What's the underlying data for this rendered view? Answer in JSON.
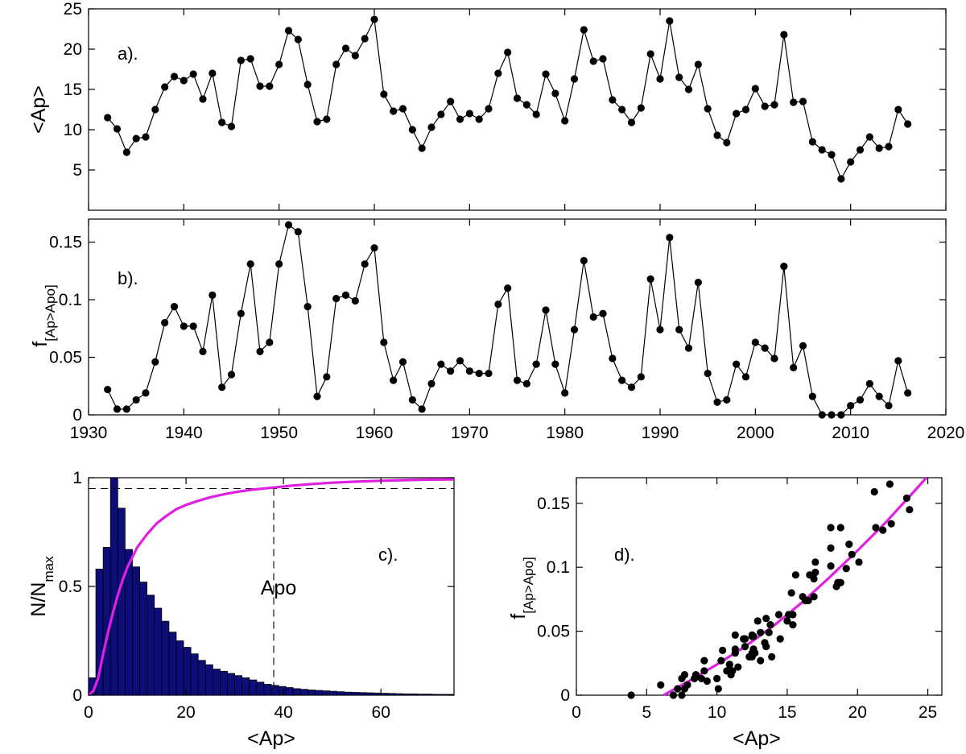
{
  "chart_data": [
    {
      "id": "a",
      "type": "line",
      "annotation": "a).",
      "ylabel": "<Ap>",
      "xlabel": "",
      "xlim": [
        1930,
        2020
      ],
      "ylim": [
        0,
        25
      ],
      "xticks": [
        "1930",
        "1940",
        "1950",
        "1960",
        "1970",
        "1980",
        "1990",
        "2000",
        "2010",
        "2020"
      ],
      "yticks": [
        "5",
        "10",
        "15",
        "20",
        "25"
      ],
      "marker": "filled-circle",
      "color": "#000000",
      "x": [
        1932,
        1933,
        1934,
        1935,
        1936,
        1937,
        1938,
        1939,
        1940,
        1941,
        1942,
        1943,
        1944,
        1945,
        1946,
        1947,
        1948,
        1949,
        1950,
        1951,
        1952,
        1953,
        1954,
        1955,
        1956,
        1957,
        1958,
        1959,
        1960,
        1961,
        1962,
        1963,
        1964,
        1965,
        1966,
        1967,
        1968,
        1969,
        1970,
        1971,
        1972,
        1973,
        1974,
        1975,
        1976,
        1977,
        1978,
        1979,
        1980,
        1981,
        1982,
        1983,
        1984,
        1985,
        1986,
        1987,
        1988,
        1989,
        1990,
        1991,
        1992,
        1993,
        1994,
        1995,
        1996,
        1997,
        1998,
        1999,
        2000,
        2001,
        2002,
        2003,
        2004,
        2005,
        2006,
        2007,
        2008,
        2009,
        2010,
        2011,
        2012,
        2013,
        2014,
        2015,
        2016
      ],
      "y": [
        11.5,
        10.1,
        7.2,
        8.9,
        9.1,
        12.5,
        15.3,
        16.6,
        16.1,
        16.9,
        13.8,
        17.0,
        10.9,
        10.4,
        18.6,
        18.8,
        15.4,
        15.4,
        18.1,
        22.3,
        21.2,
        15.6,
        11.0,
        11.3,
        18.1,
        20.1,
        19.2,
        21.3,
        23.7,
        14.4,
        12.3,
        12.6,
        10.0,
        7.7,
        10.3,
        11.9,
        13.5,
        11.3,
        12.0,
        11.3,
        12.6,
        17.0,
        19.6,
        13.9,
        13.1,
        11.9,
        16.9,
        14.5,
        11.1,
        16.3,
        22.4,
        18.5,
        18.8,
        13.7,
        12.5,
        10.9,
        12.7,
        19.4,
        16.3,
        23.5,
        16.5,
        15.0,
        18.1,
        12.6,
        9.3,
        8.4,
        12.0,
        12.5,
        15.1,
        12.9,
        13.1,
        21.8,
        13.4,
        13.5,
        8.5,
        7.5,
        6.9,
        3.9,
        6.0,
        7.5,
        9.1,
        7.7,
        7.9,
        12.5,
        10.7
      ]
    },
    {
      "id": "b",
      "type": "line",
      "annotation": "b).",
      "ylabel": "f",
      "ylabel_subscript": "[Ap>Apo]",
      "xlabel": "",
      "xlim": [
        1930,
        2020
      ],
      "ylim": [
        0,
        0.17
      ],
      "xticks": [
        "1930",
        "1940",
        "1950",
        "1960",
        "1970",
        "1980",
        "1990",
        "2000",
        "2010",
        "2020"
      ],
      "yticks": [
        "0",
        "0.05",
        "0.1",
        "0.15"
      ],
      "marker": "filled-circle",
      "color": "#000000",
      "x": [
        1932,
        1933,
        1934,
        1935,
        1936,
        1937,
        1938,
        1939,
        1940,
        1941,
        1942,
        1943,
        1944,
        1945,
        1946,
        1947,
        1948,
        1949,
        1950,
        1951,
        1952,
        1953,
        1954,
        1955,
        1956,
        1957,
        1958,
        1959,
        1960,
        1961,
        1962,
        1963,
        1964,
        1965,
        1966,
        1967,
        1968,
        1969,
        1970,
        1971,
        1972,
        1973,
        1974,
        1975,
        1976,
        1977,
        1978,
        1979,
        1980,
        1981,
        1982,
        1983,
        1984,
        1985,
        1986,
        1987,
        1988,
        1989,
        1990,
        1991,
        1992,
        1993,
        1994,
        1995,
        1996,
        1997,
        1998,
        1999,
        2000,
        2001,
        2002,
        2003,
        2004,
        2005,
        2006,
        2007,
        2008,
        2009,
        2010,
        2011,
        2012,
        2013,
        2014,
        2015,
        2016
      ],
      "y": [
        0.022,
        0.005,
        0.005,
        0.013,
        0.019,
        0.046,
        0.08,
        0.094,
        0.077,
        0.077,
        0.055,
        0.104,
        0.024,
        0.035,
        0.088,
        0.131,
        0.055,
        0.063,
        0.131,
        0.165,
        0.159,
        0.094,
        0.016,
        0.033,
        0.101,
        0.104,
        0.099,
        0.131,
        0.145,
        0.063,
        0.03,
        0.046,
        0.013,
        0.005,
        0.027,
        0.044,
        0.038,
        0.047,
        0.038,
        0.036,
        0.036,
        0.096,
        0.11,
        0.03,
        0.027,
        0.044,
        0.091,
        0.044,
        0.019,
        0.074,
        0.134,
        0.085,
        0.088,
        0.049,
        0.03,
        0.024,
        0.033,
        0.118,
        0.074,
        0.154,
        0.074,
        0.058,
        0.115,
        0.036,
        0.011,
        0.013,
        0.044,
        0.033,
        0.063,
        0.058,
        0.049,
        0.129,
        0.041,
        0.06,
        0.016,
        0.0,
        0.0,
        0.0,
        0.008,
        0.013,
        0.027,
        0.016,
        0.008,
        0.047,
        0.019
      ]
    },
    {
      "id": "c",
      "type": "bar",
      "annotation": "c).",
      "ylabel": "N/N",
      "ylabel_subscript": "max",
      "xlabel": "<Ap>",
      "xlim": [
        0,
        75
      ],
      "ylim": [
        0,
        1
      ],
      "xticks": [
        "0",
        "20",
        "40",
        "60"
      ],
      "yticks": [
        "0",
        "0.5",
        "1"
      ],
      "bar_color": "#0d0d7a",
      "bin_width": 1.5,
      "values": [
        0.08,
        0.58,
        0.68,
        1.0,
        0.86,
        0.67,
        0.59,
        0.52,
        0.46,
        0.4,
        0.34,
        0.29,
        0.25,
        0.22,
        0.19,
        0.16,
        0.14,
        0.12,
        0.11,
        0.1,
        0.09,
        0.08,
        0.07,
        0.06,
        0.05,
        0.045,
        0.04,
        0.035,
        0.03,
        0.027,
        0.024,
        0.022,
        0.02,
        0.018,
        0.016,
        0.014,
        0.013,
        0.012,
        0.011,
        0.01,
        0.009,
        0.008,
        0.007,
        0.006,
        0.006,
        0.005,
        0.005,
        0.004,
        0.004,
        0.004
      ],
      "cdf": {
        "color": "#e020e0",
        "x": [
          0,
          1,
          2,
          3,
          4,
          5,
          6,
          7,
          8,
          9,
          10,
          12,
          14,
          16,
          18,
          20,
          22,
          25,
          28,
          31,
          34,
          38,
          42,
          46,
          50,
          55,
          60,
          65,
          70,
          75
        ],
        "y": [
          0,
          0.02,
          0.08,
          0.19,
          0.29,
          0.38,
          0.46,
          0.53,
          0.59,
          0.635,
          0.68,
          0.74,
          0.79,
          0.825,
          0.855,
          0.875,
          0.89,
          0.91,
          0.925,
          0.937,
          0.946,
          0.955,
          0.964,
          0.971,
          0.977,
          0.982,
          0.986,
          0.989,
          0.991,
          0.992
        ]
      },
      "threshold_y": 0.95,
      "apo_x": 38,
      "apo_label": "Apo"
    },
    {
      "id": "d",
      "type": "scatter",
      "annotation": "d).",
      "ylabel": "f",
      "ylabel_subscript": "[Ap>Apo]",
      "xlabel": "<Ap>",
      "xlim": [
        0,
        26
      ],
      "ylim": [
        0,
        0.17
      ],
      "xticks": [
        "0",
        "5",
        "10",
        "15",
        "20",
        "25"
      ],
      "yticks": [
        "0",
        "0.05",
        "0.1",
        "0.15"
      ],
      "marker": "filled-circle",
      "fit_color": "#e020e0",
      "fit": {
        "x": [
          6.2,
          8,
          10,
          12,
          14,
          16,
          18,
          20,
          22,
          24,
          24.9
        ],
        "y": [
          0,
          0.011,
          0.024,
          0.038,
          0.054,
          0.072,
          0.092,
          0.113,
          0.135,
          0.159,
          0.17
        ]
      },
      "x": [
        11.5,
        10.1,
        7.2,
        8.9,
        9.1,
        12.5,
        15.3,
        16.6,
        16.1,
        16.9,
        13.8,
        17.0,
        10.9,
        10.4,
        18.6,
        18.8,
        15.4,
        15.4,
        18.1,
        22.3,
        21.2,
        15.6,
        11.0,
        11.3,
        18.1,
        20.1,
        19.2,
        21.3,
        23.7,
        14.4,
        12.3,
        12.6,
        10.0,
        7.7,
        10.3,
        11.9,
        13.5,
        11.3,
        12.0,
        11.3,
        12.6,
        17.0,
        19.6,
        13.9,
        13.1,
        11.9,
        16.9,
        14.5,
        11.1,
        16.3,
        22.4,
        18.5,
        18.8,
        13.7,
        12.5,
        10.9,
        12.7,
        19.4,
        16.3,
        23.5,
        16.5,
        15.0,
        18.1,
        12.6,
        9.3,
        8.4,
        12.0,
        12.5,
        15.1,
        12.9,
        13.1,
        21.8,
        13.4,
        13.5,
        8.5,
        7.5,
        6.9,
        3.9,
        6.0,
        7.5,
        9.1,
        7.7,
        7.9,
        12.5,
        10.7
      ],
      "y": [
        0.022,
        0.005,
        0.005,
        0.013,
        0.019,
        0.046,
        0.08,
        0.094,
        0.077,
        0.077,
        0.055,
        0.104,
        0.024,
        0.035,
        0.088,
        0.131,
        0.055,
        0.063,
        0.131,
        0.165,
        0.159,
        0.094,
        0.016,
        0.033,
        0.101,
        0.104,
        0.099,
        0.131,
        0.145,
        0.063,
        0.03,
        0.046,
        0.013,
        0.005,
        0.027,
        0.044,
        0.038,
        0.047,
        0.038,
        0.036,
        0.036,
        0.096,
        0.11,
        0.03,
        0.027,
        0.044,
        0.091,
        0.044,
        0.019,
        0.074,
        0.134,
        0.085,
        0.088,
        0.049,
        0.03,
        0.024,
        0.033,
        0.118,
        0.074,
        0.154,
        0.074,
        0.058,
        0.115,
        0.036,
        0.011,
        0.013,
        0.044,
        0.033,
        0.063,
        0.058,
        0.049,
        0.129,
        0.041,
        0.06,
        0.016,
        0.0,
        0.0,
        0.0,
        0.008,
        0.013,
        0.027,
        0.016,
        0.008,
        0.047,
        0.019
      ]
    }
  ]
}
